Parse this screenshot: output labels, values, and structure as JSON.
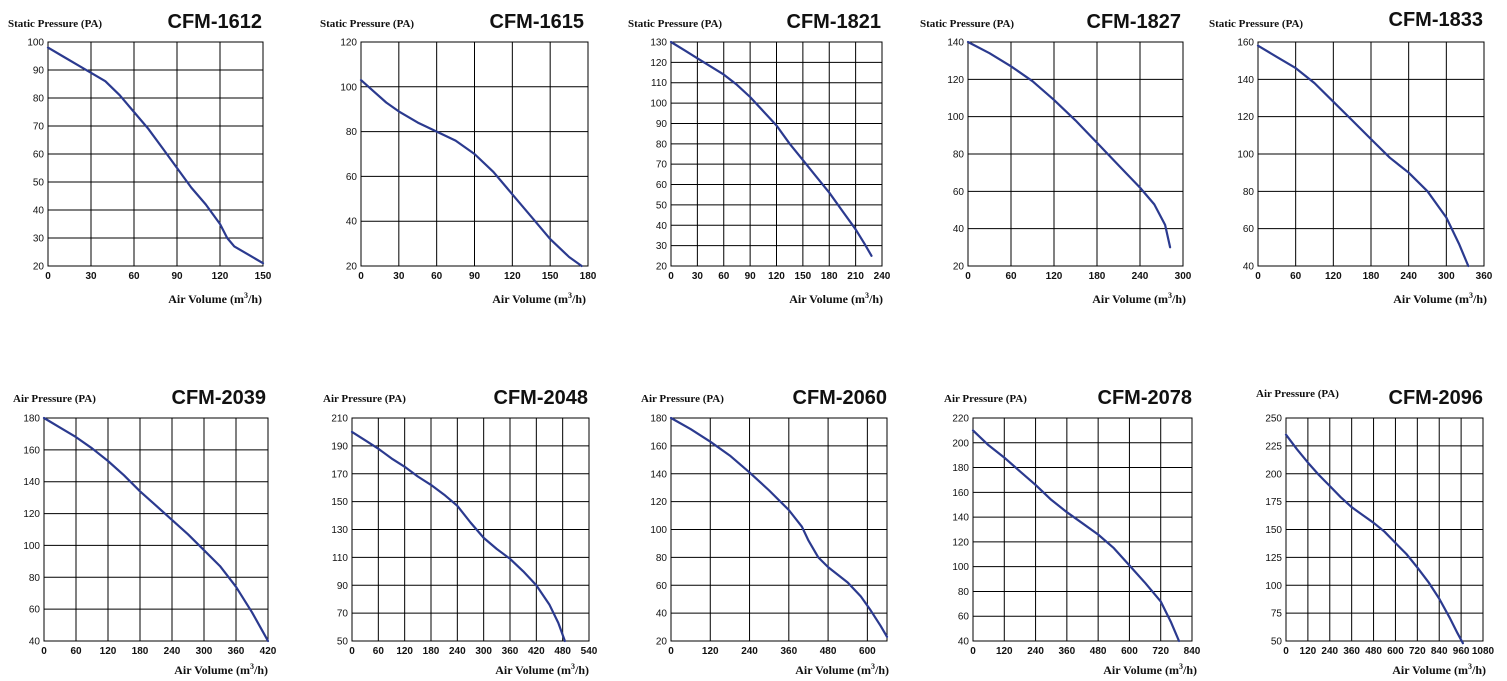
{
  "chart_data": [
    {
      "type": "line",
      "title": "CFM-1612",
      "ylabel": "Static Pressure (PA)",
      "xlabel": "Air Volume (m",
      "xlabel_sup": "3",
      "xlabel_end": "/h)",
      "xlim": [
        0,
        150
      ],
      "ylim": [
        20,
        100
      ],
      "xticks": [
        0,
        30,
        60,
        90,
        120,
        150
      ],
      "yticks": [
        20,
        30,
        40,
        50,
        60,
        70,
        80,
        90,
        100
      ],
      "x": [
        0,
        10,
        20,
        30,
        40,
        50,
        60,
        70,
        80,
        90,
        100,
        110,
        120,
        125,
        130,
        140,
        150
      ],
      "y": [
        98,
        95,
        92,
        89,
        86,
        81,
        75,
        69,
        62,
        55,
        48,
        42,
        35,
        30,
        27,
        24,
        21
      ]
    },
    {
      "type": "line",
      "title": "CFM-1615",
      "ylabel": "Static Pressure (PA)",
      "xlabel": "Air Volume (m",
      "xlabel_sup": "3",
      "xlabel_end": "/h)",
      "xlim": [
        0,
        180
      ],
      "ylim": [
        20,
        120
      ],
      "xticks": [
        0,
        30,
        60,
        90,
        120,
        150,
        180
      ],
      "yticks": [
        20,
        40,
        60,
        80,
        100,
        120
      ],
      "x": [
        0,
        10,
        20,
        30,
        45,
        60,
        75,
        90,
        105,
        120,
        135,
        150,
        165,
        175
      ],
      "y": [
        103,
        98,
        93,
        89,
        84,
        80,
        76,
        70,
        62,
        52,
        42,
        32,
        24,
        20
      ]
    },
    {
      "type": "line",
      "title": "CFM-1821",
      "ylabel": "Static Pressure (PA)",
      "xlabel": "Air Volume (m",
      "xlabel_sup": "3",
      "xlabel_end": "/h)",
      "xlim": [
        0,
        240
      ],
      "ylim": [
        20,
        130
      ],
      "xticks": [
        0,
        30,
        60,
        90,
        120,
        150,
        180,
        210,
        240
      ],
      "yticks": [
        20,
        30,
        40,
        50,
        60,
        70,
        80,
        90,
        100,
        110,
        120,
        130
      ],
      "x": [
        0,
        15,
        30,
        45,
        60,
        75,
        90,
        105,
        120,
        135,
        150,
        165,
        180,
        195,
        210,
        220,
        228
      ],
      "y": [
        130,
        126,
        122,
        118,
        114,
        109,
        103,
        96,
        89,
        80,
        72,
        64,
        56,
        47,
        38,
        31,
        25
      ]
    },
    {
      "type": "line",
      "title": "CFM-1827",
      "ylabel": "Static Pressure (PA)",
      "xlabel": "Air Volume (m",
      "xlabel_sup": "3",
      "xlabel_end": "/h)",
      "xlim": [
        0,
        300
      ],
      "ylim": [
        20,
        140
      ],
      "xticks": [
        0,
        60,
        120,
        180,
        240,
        300
      ],
      "yticks": [
        20,
        40,
        60,
        80,
        100,
        120,
        140
      ],
      "x": [
        0,
        30,
        60,
        90,
        120,
        150,
        180,
        210,
        240,
        260,
        275,
        282
      ],
      "y": [
        140,
        134,
        127,
        119,
        109,
        98,
        86,
        74,
        62,
        53,
        42,
        30
      ]
    },
    {
      "type": "line",
      "title": "CFM-1833",
      "ylabel": "Static Pressure (PA)",
      "xlabel": "Air Volume (m",
      "xlabel_sup": "3",
      "xlabel_end": "/h)",
      "xlim": [
        0,
        360
      ],
      "ylim": [
        40,
        160
      ],
      "xticks": [
        0,
        60,
        120,
        180,
        240,
        300,
        360
      ],
      "yticks": [
        40,
        60,
        80,
        100,
        120,
        140,
        160
      ],
      "x": [
        0,
        30,
        60,
        90,
        120,
        150,
        180,
        210,
        240,
        270,
        300,
        320,
        335
      ],
      "y": [
        158,
        152,
        146,
        138,
        128,
        118,
        108,
        98,
        90,
        80,
        66,
        52,
        40
      ]
    },
    {
      "type": "line",
      "title": "CFM-2039",
      "ylabel": "Air Pressure (PA)",
      "xlabel": "Air Volume (m",
      "xlabel_sup": "3",
      "xlabel_end": "/h)",
      "xlim": [
        0,
        420
      ],
      "ylim": [
        40,
        180
      ],
      "xticks": [
        0,
        60,
        120,
        180,
        240,
        300,
        360,
        420
      ],
      "yticks": [
        40,
        60,
        80,
        100,
        120,
        140,
        160,
        180
      ],
      "x": [
        0,
        30,
        60,
        90,
        120,
        150,
        180,
        210,
        240,
        270,
        300,
        330,
        360,
        390,
        410,
        420
      ],
      "y": [
        180,
        174,
        168,
        161,
        153,
        144,
        134,
        125,
        116,
        107,
        97,
        87,
        74,
        58,
        46,
        40
      ]
    },
    {
      "type": "line",
      "title": "CFM-2048",
      "ylabel": "Air Pressure (PA)",
      "xlabel": "Air Volume (m",
      "xlabel_sup": "3",
      "xlabel_end": "/h)",
      "xlim": [
        0,
        540
      ],
      "ylim": [
        50,
        210
      ],
      "xticks": [
        0,
        60,
        120,
        180,
        240,
        300,
        360,
        420,
        480,
        540
      ],
      "yticks": [
        50,
        70,
        90,
        110,
        130,
        150,
        170,
        190,
        210
      ],
      "x": [
        0,
        30,
        60,
        90,
        120,
        150,
        180,
        210,
        240,
        270,
        300,
        330,
        360,
        390,
        420,
        450,
        470,
        485
      ],
      "y": [
        200,
        194,
        188,
        181,
        175,
        168,
        162,
        155,
        147,
        135,
        124,
        116,
        109,
        100,
        90,
        76,
        63,
        50
      ]
    },
    {
      "type": "line",
      "title": "CFM-2060",
      "ylabel": "Air Pressure (PA)",
      "xlabel": "Air Volume (m",
      "xlabel_sup": "3",
      "xlabel_end": "/h)",
      "xlim": [
        0,
        660
      ],
      "ylim": [
        20,
        180
      ],
      "xticks": [
        0,
        120,
        240,
        360,
        480,
        600
      ],
      "yticks": [
        20,
        40,
        60,
        80,
        100,
        120,
        140,
        160,
        180
      ],
      "x": [
        0,
        60,
        120,
        180,
        240,
        300,
        360,
        400,
        420,
        450,
        480,
        540,
        580,
        610,
        640,
        660
      ],
      "y": [
        180,
        172,
        163,
        153,
        141,
        128,
        114,
        102,
        92,
        80,
        73,
        62,
        52,
        42,
        31,
        23
      ]
    },
    {
      "type": "line",
      "title": "CFM-2078",
      "ylabel": "Air Pressure (PA)",
      "xlabel": "Air Volume (m",
      "xlabel_sup": "3",
      "xlabel_end": "/h)",
      "xlim": [
        0,
        840
      ],
      "ylim": [
        40,
        220
      ],
      "xticks": [
        0,
        120,
        240,
        360,
        480,
        600,
        720,
        840
      ],
      "yticks": [
        40,
        60,
        80,
        100,
        120,
        140,
        160,
        180,
        200,
        220
      ],
      "x": [
        0,
        60,
        120,
        180,
        240,
        300,
        360,
        420,
        480,
        540,
        600,
        660,
        720,
        760,
        790
      ],
      "y": [
        210,
        198,
        188,
        177,
        166,
        154,
        144,
        135,
        126,
        115,
        101,
        87,
        72,
        55,
        40
      ]
    },
    {
      "type": "line",
      "title": "CFM-2096",
      "ylabel": "Air Pressure (PA)",
      "xlabel": "Air Volume (m",
      "xlabel_sup": "3",
      "xlabel_end": "/h)",
      "xlim": [
        0,
        1080
      ],
      "ylim": [
        50,
        250
      ],
      "xticks": [
        0,
        120,
        240,
        360,
        480,
        600,
        720,
        840,
        960,
        1080
      ],
      "yticks": [
        50,
        75,
        100,
        125,
        150,
        175,
        200,
        225,
        250
      ],
      "x": [
        0,
        60,
        120,
        180,
        240,
        300,
        360,
        420,
        480,
        540,
        600,
        660,
        720,
        780,
        840,
        900,
        940,
        970
      ],
      "y": [
        235,
        222,
        210,
        199,
        189,
        179,
        170,
        163,
        156,
        148,
        138,
        128,
        116,
        103,
        88,
        70,
        57,
        48
      ]
    }
  ]
}
